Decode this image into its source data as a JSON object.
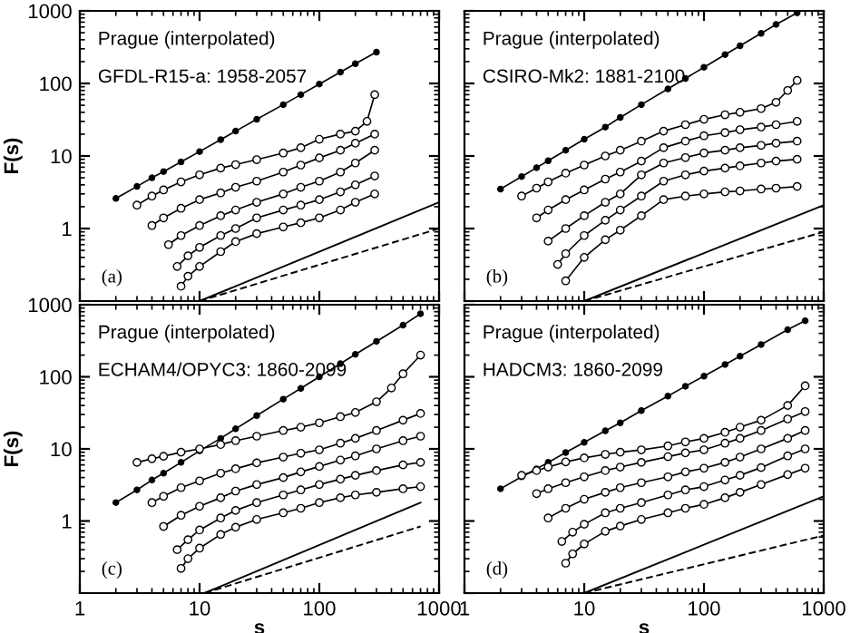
{
  "chart_data": [
    {
      "type": "line",
      "annotations": [
        "Prague (interpolated)",
        "GFDL-R15-a: 1958-2057",
        "(a)"
      ],
      "ylabel": "F(s)",
      "log": "xy",
      "xlim": [
        1,
        1000
      ],
      "ylim": [
        0.1,
        1000
      ],
      "xticks": [
        1,
        10,
        100,
        1000
      ],
      "yticks": [
        1,
        10,
        100,
        1000
      ],
      "tick_labels": "y",
      "grid": false,
      "legend": false,
      "series": [
        {
          "color": "#000000",
          "marker": "circle",
          "x": [
            2,
            3,
            4,
            5,
            7,
            10,
            15,
            20,
            30,
            50,
            70,
            100,
            150,
            200,
            300
          ],
          "values": [
            2.6,
            3.8,
            5,
            6.1,
            8.3,
            11.5,
            16.8,
            22,
            32,
            51,
            70,
            98,
            143,
            187,
            270
          ]
        },
        {
          "color": "#000000",
          "marker": "circle",
          "x": [
            3,
            4,
            5,
            7,
            10,
            15,
            20,
            30,
            50,
            70,
            100,
            150,
            200,
            250,
            290
          ],
          "values": [
            2.1,
            2.8,
            3.4,
            4.4,
            5.5,
            6.8,
            7.6,
            8.9,
            11,
            13,
            17,
            20,
            22,
            30,
            70
          ]
        },
        {
          "color": "#000000",
          "marker": "circle",
          "x": [
            4,
            5,
            7,
            10,
            15,
            20,
            30,
            50,
            70,
            100,
            150,
            200,
            290
          ],
          "values": [
            1.1,
            1.4,
            1.9,
            2.5,
            3.1,
            3.7,
            4.5,
            6,
            7.5,
            9.4,
            12,
            15,
            20
          ]
        },
        {
          "color": "#000000",
          "marker": "circle",
          "x": [
            5.5,
            7,
            10,
            15,
            20,
            30,
            50,
            70,
            100,
            150,
            200,
            290
          ],
          "values": [
            0.6,
            0.8,
            1.1,
            1.5,
            1.8,
            2.3,
            3,
            3.7,
            4.5,
            6,
            8,
            12
          ]
        },
        {
          "color": "#000000",
          "marker": "circle",
          "x": [
            6.5,
            8,
            10,
            15,
            20,
            30,
            50,
            70,
            100,
            150,
            200,
            290
          ],
          "values": [
            0.3,
            0.42,
            0.55,
            0.8,
            1,
            1.4,
            1.8,
            2.1,
            2.5,
            3.2,
            4,
            5.3
          ]
        },
        {
          "color": "#000000",
          "marker": "circle",
          "x": [
            7,
            8,
            10,
            15,
            20,
            30,
            50,
            70,
            100,
            150,
            200,
            290
          ],
          "values": [
            0.16,
            0.22,
            0.3,
            0.48,
            0.66,
            0.85,
            1.05,
            1.2,
            1.4,
            1.8,
            2.3,
            3
          ]
        },
        {
          "color": "#000000",
          "marker": "none",
          "x": [
            10,
            1000
          ],
          "values": [
            0.1,
            2.3
          ]
        },
        {
          "color": "#000000",
          "marker": "none",
          "line_style": "dashed",
          "x": [
            10,
            1000
          ],
          "values": [
            0.1,
            1.0
          ]
        }
      ]
    },
    {
      "type": "line",
      "annotations": [
        "Prague (interpolated)",
        "CSIRO-Mk2: 1881-2100",
        "(b)"
      ],
      "log": "xy",
      "xlim": [
        1,
        1000
      ],
      "ylim": [
        0.1,
        1000
      ],
      "tick_labels": false,
      "grid": false,
      "legend": false,
      "series": [
        {
          "color": "#000000",
          "marker": "circle",
          "x": [
            2,
            3,
            4,
            5,
            7,
            10,
            15,
            20,
            30,
            50,
            70,
            100,
            150,
            200,
            300,
            400,
            600
          ],
          "values": [
            3.5,
            5.2,
            6.9,
            8.6,
            12,
            17,
            25,
            34,
            51,
            84,
            117,
            167,
            250,
            330,
            490,
            650,
            940
          ]
        },
        {
          "color": "#000000",
          "marker": "circle",
          "x": [
            3,
            4,
            5,
            7,
            10,
            15,
            20,
            30,
            46,
            70,
            100,
            150,
            200,
            300,
            400,
            500,
            600
          ],
          "values": [
            2.8,
            3.6,
            4.4,
            5.8,
            7.5,
            10,
            12,
            16,
            22,
            27,
            32,
            37,
            40,
            45,
            55,
            80,
            110
          ]
        },
        {
          "color": "#000000",
          "marker": "circle",
          "x": [
            4,
            5,
            7,
            10,
            15,
            20,
            30,
            46,
            70,
            100,
            150,
            200,
            300,
            400,
            600
          ],
          "values": [
            1.4,
            1.8,
            2.5,
            3.4,
            4.8,
            6,
            8.5,
            13,
            16,
            19,
            21,
            23,
            25,
            27,
            30
          ]
        },
        {
          "color": "#000000",
          "marker": "circle",
          "x": [
            5,
            7,
            10,
            15,
            20,
            30,
            46,
            70,
            100,
            150,
            200,
            300,
            400,
            600
          ],
          "values": [
            0.67,
            1,
            1.5,
            2.3,
            3,
            5.5,
            8,
            9.5,
            11,
            12,
            13,
            14,
            15,
            16
          ]
        },
        {
          "color": "#000000",
          "marker": "circle",
          "x": [
            6,
            7,
            10,
            15,
            20,
            30,
            46,
            70,
            100,
            150,
            200,
            300,
            400,
            600
          ],
          "values": [
            0.32,
            0.45,
            0.8,
            1.3,
            1.8,
            2.8,
            4.5,
            5.5,
            6.2,
            6.8,
            7.3,
            8,
            8.5,
            9
          ]
        },
        {
          "color": "#000000",
          "marker": "circle",
          "x": [
            7,
            10,
            15,
            20,
            30,
            46,
            70,
            100,
            150,
            200,
            300,
            400,
            600
          ],
          "values": [
            0.19,
            0.4,
            0.7,
            0.95,
            1.5,
            2.5,
            2.8,
            3,
            3.2,
            3.3,
            3.5,
            3.6,
            3.8
          ]
        },
        {
          "color": "#000000",
          "marker": "none",
          "x": [
            10,
            1000
          ],
          "values": [
            0.1,
            2.1
          ]
        },
        {
          "color": "#000000",
          "marker": "none",
          "line_style": "dashed",
          "x": [
            10,
            1000
          ],
          "values": [
            0.1,
            0.9
          ]
        }
      ]
    },
    {
      "type": "line",
      "annotations": [
        "Prague (interpolated)",
        "ECHAM4/OPYC3: 1860-2099",
        "(c)"
      ],
      "xlabel": "s",
      "ylabel": "F(s)",
      "log": "xy",
      "xlim": [
        1,
        1000
      ],
      "ylim": [
        0.1,
        1000
      ],
      "xticks": [
        1,
        10,
        100,
        1000
      ],
      "yticks": [
        1,
        10,
        100,
        1000
      ],
      "grid": false,
      "legend": false,
      "series": [
        {
          "color": "#000000",
          "marker": "circle",
          "x": [
            2,
            3,
            4,
            5,
            7,
            10,
            15,
            20,
            30,
            50,
            70,
            100,
            150,
            200,
            300,
            500,
            700
          ],
          "values": [
            1.8,
            2.7,
            3.7,
            4.6,
            6.5,
            9.4,
            14,
            19,
            29,
            49,
            69,
            100,
            152,
            205,
            310,
            520,
            750
          ]
        },
        {
          "color": "#000000",
          "marker": "circle",
          "x": [
            3,
            4,
            5,
            7,
            10,
            15,
            20,
            30,
            50,
            70,
            100,
            150,
            200,
            300,
            400,
            500,
            700
          ],
          "values": [
            6.5,
            7.3,
            7.9,
            9,
            10,
            11.5,
            13,
            15,
            18,
            20,
            23,
            28,
            32,
            45,
            70,
            110,
            200
          ]
        },
        {
          "color": "#000000",
          "marker": "circle",
          "x": [
            4,
            5,
            7,
            10,
            15,
            20,
            30,
            50,
            70,
            100,
            150,
            200,
            300,
            500,
            700
          ],
          "values": [
            1.8,
            2.2,
            2.9,
            3.6,
            4.6,
            5.3,
            6.4,
            7.7,
            8.7,
            9.7,
            12,
            14,
            18,
            25,
            31
          ]
        },
        {
          "color": "#000000",
          "marker": "circle",
          "x": [
            5,
            7,
            10,
            15,
            20,
            30,
            50,
            70,
            100,
            150,
            200,
            300,
            500,
            700
          ],
          "values": [
            0.84,
            1.2,
            1.6,
            2.1,
            2.6,
            3.2,
            4,
            4.8,
            5.7,
            7,
            8,
            10,
            13,
            15
          ]
        },
        {
          "color": "#000000",
          "marker": "circle",
          "x": [
            6.5,
            8,
            10,
            15,
            20,
            30,
            50,
            70,
            100,
            150,
            200,
            300,
            500,
            700
          ],
          "values": [
            0.4,
            0.55,
            0.75,
            1.1,
            1.4,
            1.8,
            2.3,
            2.7,
            3.2,
            3.8,
            4.3,
            5,
            6,
            6.5
          ]
        },
        {
          "color": "#000000",
          "marker": "circle",
          "x": [
            7,
            8,
            10,
            15,
            20,
            30,
            50,
            70,
            100,
            150,
            200,
            300,
            500,
            700
          ],
          "values": [
            0.22,
            0.3,
            0.42,
            0.65,
            0.82,
            1.05,
            1.3,
            1.5,
            1.8,
            2.1,
            2.3,
            2.5,
            2.8,
            3
          ]
        },
        {
          "color": "#000000",
          "marker": "none",
          "x": [
            11,
            700
          ],
          "values": [
            0.1,
            1.8
          ]
        },
        {
          "color": "#000000",
          "marker": "none",
          "line_style": "dashed",
          "x": [
            11,
            700
          ],
          "values": [
            0.1,
            0.84
          ]
        }
      ]
    },
    {
      "type": "line",
      "annotations": [
        "Prague (interpolated)",
        "HADCM3: 1860-2099",
        "(d)"
      ],
      "xlabel": "s",
      "log": "xy",
      "xlim": [
        1,
        1000
      ],
      "ylim": [
        0.1,
        1000
      ],
      "xticks": [
        1,
        10,
        100,
        1000
      ],
      "tick_labels": "x",
      "grid": false,
      "legend": false,
      "series": [
        {
          "color": "#000000",
          "marker": "circle",
          "x": [
            2,
            3,
            4,
            5,
            7,
            10,
            15,
            20,
            30,
            50,
            70,
            100,
            150,
            200,
            300,
            500,
            700
          ],
          "values": [
            2.8,
            4.1,
            5.3,
            6.5,
            8.9,
            12.3,
            17.8,
            23,
            34,
            54,
            74,
            102,
            148,
            193,
            280,
            450,
            600
          ]
        },
        {
          "color": "#000000",
          "marker": "circle",
          "x": [
            3,
            4,
            5,
            7,
            10,
            15,
            20,
            30,
            50,
            70,
            100,
            150,
            200,
            300,
            500,
            700
          ],
          "values": [
            4.3,
            5,
            5.6,
            6.6,
            7.5,
            8.4,
            9,
            9.7,
            11,
            12.5,
            14,
            17,
            20,
            25,
            40,
            75
          ]
        },
        {
          "color": "#000000",
          "marker": "circle",
          "x": [
            4,
            5,
            7,
            10,
            15,
            20,
            30,
            50,
            70,
            100,
            150,
            200,
            300,
            500,
            700
          ],
          "values": [
            2.4,
            2.8,
            3.4,
            4.1,
            5,
            5.6,
            6.5,
            7.8,
            8.8,
            9.7,
            12,
            14,
            18,
            26,
            33
          ]
        },
        {
          "color": "#000000",
          "marker": "circle",
          "x": [
            5,
            7,
            10,
            15,
            20,
            30,
            50,
            70,
            100,
            150,
            200,
            300,
            500,
            700
          ],
          "values": [
            1.1,
            1.5,
            2,
            2.5,
            2.9,
            3.4,
            4.1,
            4.8,
            5.4,
            6.5,
            7.7,
            10,
            14,
            18
          ]
        },
        {
          "color": "#000000",
          "marker": "circle",
          "x": [
            6.5,
            8,
            10,
            15,
            20,
            30,
            50,
            70,
            100,
            150,
            200,
            300,
            500,
            700
          ],
          "values": [
            0.52,
            0.7,
            0.9,
            1.3,
            1.5,
            1.8,
            2.3,
            2.7,
            3,
            3.7,
            4.3,
            5.5,
            8,
            10
          ]
        },
        {
          "color": "#000000",
          "marker": "circle",
          "x": [
            7,
            8,
            10,
            15,
            20,
            30,
            50,
            70,
            100,
            150,
            200,
            300,
            500,
            700
          ],
          "values": [
            0.26,
            0.35,
            0.48,
            0.72,
            0.85,
            1.05,
            1.3,
            1.5,
            1.7,
            2.1,
            2.5,
            3.2,
            4.4,
            5.4
          ]
        },
        {
          "color": "#000000",
          "marker": "none",
          "x": [
            10,
            1000
          ],
          "values": [
            0.1,
            2.2
          ]
        },
        {
          "color": "#000000",
          "marker": "none",
          "line_style": "dashed",
          "x": [
            10,
            1000
          ],
          "values": [
            0.1,
            0.63
          ]
        }
      ]
    }
  ]
}
